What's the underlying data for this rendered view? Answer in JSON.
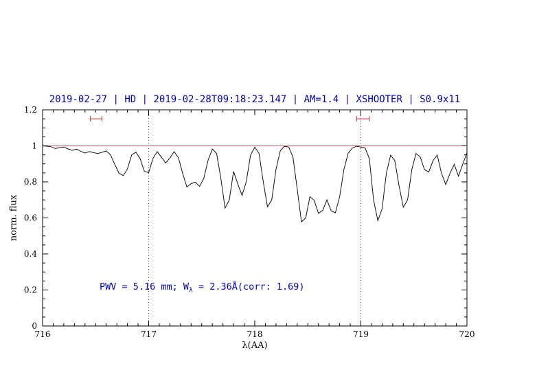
{
  "figure": {
    "background": "#ffffff",
    "frame_color": "#000000",
    "spectrum_color": "#111111"
  },
  "chart_data": {
    "type": "line",
    "title": "2019-02-27 | HD | 2019-02-28T09:18:23.147 | AM=1.4 | XSHOOTER | S0.9x11",
    "title_color": "#0000bb",
    "xlabel": "λ(AA)",
    "ylabel": "norm. flux",
    "xlim": [
      716,
      720
    ],
    "ylim": [
      0,
      1.2
    ],
    "grid": "off",
    "legend": "none",
    "x_tick_values": [
      716,
      717,
      718,
      719,
      720
    ],
    "x_tick_labels": [
      "716",
      "717",
      "718",
      "719",
      "720"
    ],
    "x_minor_step": 0.1,
    "y_tick_values": [
      0,
      0.2,
      0.4,
      0.6,
      0.8,
      1,
      1.2
    ],
    "y_tick_labels": [
      "0",
      "0.2",
      "0.4",
      "0.6",
      "0.8",
      "1",
      "1.2"
    ],
    "y_minor_step": 0.05,
    "vlines": {
      "values": [
        717,
        719
      ],
      "style": "dotted",
      "color": "#444444"
    },
    "continuum": {
      "y": 1.0,
      "color": "#cc6666"
    },
    "marker_color": "#cc3333",
    "range_markers": [
      {
        "x0": 716.45,
        "x1": 716.56,
        "y": 1.15
      },
      {
        "x0": 718.96,
        "x1": 719.08,
        "y": 1.15
      }
    ],
    "annotation": {
      "prefix": "PWV = 5.16 mm; W",
      "sub": "λ",
      "suffix": " = 2.36Å(corr: 1.69)",
      "color": "#0000bb"
    },
    "series": [
      {
        "name": "telluric-spectrum",
        "color": "#111111",
        "points": [
          [
            716.0,
            1.0
          ],
          [
            716.04,
            0.998
          ],
          [
            716.08,
            0.995
          ],
          [
            716.12,
            0.985
          ],
          [
            716.16,
            0.99
          ],
          [
            716.2,
            0.993
          ],
          [
            716.24,
            0.983
          ],
          [
            716.28,
            0.975
          ],
          [
            716.32,
            0.982
          ],
          [
            716.36,
            0.97
          ],
          [
            716.4,
            0.96
          ],
          [
            716.44,
            0.968
          ],
          [
            716.48,
            0.963
          ],
          [
            716.52,
            0.957
          ],
          [
            716.56,
            0.964
          ],
          [
            716.6,
            0.972
          ],
          [
            716.64,
            0.95
          ],
          [
            716.68,
            0.898
          ],
          [
            716.72,
            0.848
          ],
          [
            716.76,
            0.835
          ],
          [
            716.8,
            0.872
          ],
          [
            716.84,
            0.95
          ],
          [
            716.88,
            0.965
          ],
          [
            716.92,
            0.928
          ],
          [
            716.96,
            0.858
          ],
          [
            717.0,
            0.852
          ],
          [
            717.04,
            0.93
          ],
          [
            717.08,
            0.968
          ],
          [
            717.12,
            0.938
          ],
          [
            717.16,
            0.905
          ],
          [
            717.2,
            0.932
          ],
          [
            717.24,
            0.968
          ],
          [
            717.28,
            0.935
          ],
          [
            717.32,
            0.848
          ],
          [
            717.36,
            0.772
          ],
          [
            717.4,
            0.79
          ],
          [
            717.44,
            0.798
          ],
          [
            717.48,
            0.775
          ],
          [
            717.52,
            0.82
          ],
          [
            717.56,
            0.92
          ],
          [
            717.6,
            0.982
          ],
          [
            717.64,
            0.958
          ],
          [
            717.68,
            0.82
          ],
          [
            717.72,
            0.655
          ],
          [
            717.76,
            0.7
          ],
          [
            717.8,
            0.858
          ],
          [
            717.84,
            0.788
          ],
          [
            717.88,
            0.725
          ],
          [
            717.92,
            0.8
          ],
          [
            717.96,
            0.948
          ],
          [
            718.0,
            0.993
          ],
          [
            718.04,
            0.958
          ],
          [
            718.08,
            0.8
          ],
          [
            718.12,
            0.662
          ],
          [
            718.16,
            0.7
          ],
          [
            718.2,
            0.868
          ],
          [
            718.24,
            0.972
          ],
          [
            718.28,
            0.998
          ],
          [
            718.32,
            0.993
          ],
          [
            718.36,
            0.938
          ],
          [
            718.4,
            0.76
          ],
          [
            718.44,
            0.578
          ],
          [
            718.48,
            0.6
          ],
          [
            718.52,
            0.718
          ],
          [
            718.56,
            0.698
          ],
          [
            718.6,
            0.625
          ],
          [
            718.64,
            0.642
          ],
          [
            718.68,
            0.7
          ],
          [
            718.72,
            0.64
          ],
          [
            718.76,
            0.628
          ],
          [
            718.8,
            0.718
          ],
          [
            718.84,
            0.868
          ],
          [
            718.88,
            0.958
          ],
          [
            718.92,
            0.988
          ],
          [
            718.96,
            0.998
          ],
          [
            719.0,
            0.993
          ],
          [
            719.04,
            0.988
          ],
          [
            719.08,
            0.928
          ],
          [
            719.12,
            0.7
          ],
          [
            719.16,
            0.585
          ],
          [
            719.2,
            0.65
          ],
          [
            719.24,
            0.848
          ],
          [
            719.28,
            0.948
          ],
          [
            719.32,
            0.918
          ],
          [
            719.36,
            0.778
          ],
          [
            719.4,
            0.66
          ],
          [
            719.44,
            0.7
          ],
          [
            719.48,
            0.868
          ],
          [
            719.52,
            0.958
          ],
          [
            719.56,
            0.938
          ],
          [
            719.6,
            0.868
          ],
          [
            719.64,
            0.855
          ],
          [
            719.68,
            0.918
          ],
          [
            719.72,
            0.948
          ],
          [
            719.76,
            0.848
          ],
          [
            719.8,
            0.785
          ],
          [
            719.84,
            0.848
          ],
          [
            719.88,
            0.898
          ],
          [
            719.92,
            0.832
          ],
          [
            719.96,
            0.898
          ],
          [
            720.0,
            0.962
          ]
        ]
      }
    ]
  }
}
